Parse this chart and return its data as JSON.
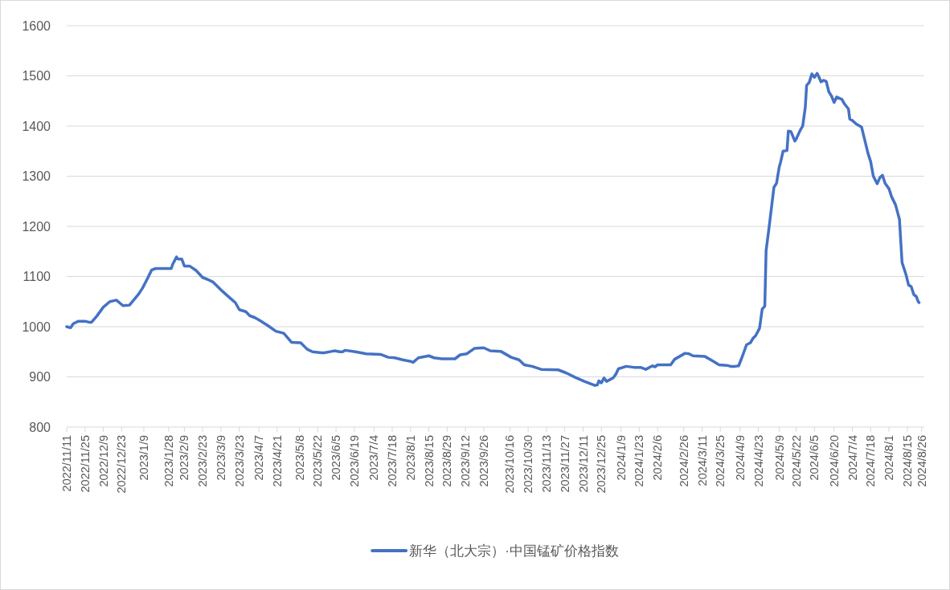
{
  "chart_data": {
    "type": "line",
    "x": [
      "2022-11-11",
      "2022-11-14",
      "2022-11-16",
      "2022-11-20",
      "2022-11-25",
      "2022-11-28",
      "2022-11-30",
      "2022-12-04",
      "2022-12-09",
      "2022-12-14",
      "2022-12-19",
      "2022-12-24",
      "2022-12-29",
      "2023-01-05",
      "2023-01-08",
      "2023-01-11",
      "2023-01-15",
      "2023-01-18",
      "2023-01-30",
      "2023-01-31",
      "2023-02-03",
      "2023-02-04",
      "2023-02-07",
      "2023-02-09",
      "2023-02-13",
      "2023-02-18",
      "2023-02-23",
      "2023-02-27",
      "2023-03-03",
      "2023-03-10",
      "2023-03-16",
      "2023-03-20",
      "2023-03-23",
      "2023-03-28",
      "2023-03-31",
      "2023-04-04",
      "2023-04-08",
      "2023-04-14",
      "2023-04-20",
      "2023-04-26",
      "2023-05-02",
      "2023-05-09",
      "2023-05-14",
      "2023-05-18",
      "2023-05-25",
      "2023-05-27",
      "2023-06-02",
      "2023-06-04",
      "2023-06-08",
      "2023-06-10",
      "2023-06-12",
      "2023-06-20",
      "2023-06-28",
      "2023-07-09",
      "2023-07-15",
      "2023-07-20",
      "2023-07-26",
      "2023-08-01",
      "2023-08-03",
      "2023-08-07",
      "2023-08-15",
      "2023-08-19",
      "2023-08-25",
      "2023-09-04",
      "2023-09-08",
      "2023-09-13",
      "2023-09-19",
      "2023-09-26",
      "2023-10-01",
      "2023-10-09",
      "2023-10-17",
      "2023-10-23",
      "2023-10-27",
      "2023-11-02",
      "2023-11-09",
      "2023-11-22",
      "2023-11-28",
      "2023-12-05",
      "2023-12-12",
      "2023-12-20",
      "2023-12-22",
      "2023-12-23",
      "2023-12-25",
      "2023-12-27",
      "2023-12-29",
      "2024-01-03",
      "2024-01-05",
      "2024-01-07",
      "2024-01-13",
      "2024-01-19",
      "2024-01-24",
      "2024-01-28",
      "2024-02-02",
      "2024-02-04",
      "2024-02-06",
      "2024-02-16",
      "2024-02-19",
      "2024-02-27",
      "2024-03-01",
      "2024-03-04",
      "2024-03-13",
      "2024-03-19",
      "2024-03-24",
      "2024-03-30",
      "2024-04-02",
      "2024-04-05",
      "2024-04-08",
      "2024-04-11",
      "2024-04-14",
      "2024-04-17",
      "2024-04-19",
      "2024-04-21",
      "2024-04-24",
      "2024-04-26",
      "2024-04-28",
      "2024-04-29",
      "2024-05-01",
      "2024-05-03",
      "2024-05-05",
      "2024-05-07",
      "2024-05-09",
      "2024-05-10",
      "2024-05-12",
      "2024-05-15",
      "2024-05-16",
      "2024-05-18",
      "2024-05-21",
      "2024-05-22",
      "2024-05-25",
      "2024-05-27",
      "2024-05-29",
      "2024-05-30",
      "2024-06-01",
      "2024-06-03",
      "2024-06-05",
      "2024-06-07",
      "2024-06-08",
      "2024-06-10",
      "2024-06-12",
      "2024-06-14",
      "2024-06-16",
      "2024-06-18",
      "2024-06-20",
      "2024-06-22",
      "2024-06-26",
      "2024-06-28",
      "2024-07-01",
      "2024-07-02",
      "2024-07-04",
      "2024-07-07",
      "2024-07-11",
      "2024-07-13",
      "2024-07-16",
      "2024-07-18",
      "2024-07-20",
      "2024-07-23",
      "2024-07-25",
      "2024-07-27",
      "2024-07-29",
      "2024-08-01",
      "2024-08-03",
      "2024-08-06",
      "2024-08-09",
      "2024-08-11",
      "2024-08-14",
      "2024-08-16",
      "2024-08-18",
      "2024-08-20",
      "2024-08-22",
      "2024-08-23",
      "2024-08-24"
    ],
    "series": [
      {
        "name": "新华（北大宗）·中国锰矿价格指数",
        "color": "#4472c4",
        "values": [
          1000,
          998,
          1006,
          1011,
          1011,
          1009,
          1009,
          1021,
          1039,
          1050,
          1053,
          1042,
          1043,
          1065,
          1077,
          1092,
          1113,
          1116,
          1116,
          1124,
          1139,
          1135,
          1135,
          1121,
          1121,
          1112,
          1098,
          1094,
          1089,
          1071,
          1057,
          1048,
          1034,
          1030,
          1022,
          1018,
          1012,
          1002,
          991,
          987,
          969,
          968,
          955,
          950,
          948,
          948,
          951,
          952,
          950,
          950,
          953,
          950,
          946,
          945,
          939,
          938,
          934,
          931,
          929,
          938,
          942,
          938,
          936,
          936,
          944,
          946,
          957,
          958,
          952,
          951,
          939,
          934,
          924,
          921,
          915,
          914,
          908,
          899,
          891,
          883,
          884,
          892,
          888,
          898,
          891,
          898,
          905,
          916,
          921,
          919,
          919,
          915,
          922,
          920,
          924,
          924,
          935,
          947,
          946,
          942,
          941,
          932,
          924,
          923,
          921,
          921,
          922,
          942,
          964,
          968,
          977,
          982,
          997,
          1035,
          1041,
          1152,
          1192,
          1235,
          1278,
          1286,
          1318,
          1327,
          1350,
          1351,
          1390,
          1389,
          1370,
          1374,
          1391,
          1400,
          1438,
          1481,
          1487,
          1504,
          1497,
          1505,
          1500,
          1488,
          1491,
          1489,
          1468,
          1460,
          1447,
          1458,
          1453,
          1444,
          1434,
          1414,
          1411,
          1404,
          1398,
          1377,
          1345,
          1329,
          1300,
          1285,
          1297,
          1302,
          1286,
          1275,
          1259,
          1243,
          1214,
          1128,
          1104,
          1083,
          1080,
          1064,
          1060,
          1052,
          1048
        ]
      }
    ],
    "xlim": [
      "2022-11-11",
      "2024-08-28"
    ],
    "xticks": [
      {
        "value": "2022-11-11",
        "label": "2022/11/11"
      },
      {
        "value": "2022-11-25",
        "label": "2022/11/25"
      },
      {
        "value": "2022-12-09",
        "label": "2022/12/9"
      },
      {
        "value": "2022-12-23",
        "label": "2022/12/23"
      },
      {
        "value": "2023-01-09",
        "label": "2023/1/9"
      },
      {
        "value": "2023-01-28",
        "label": "2023/1/28"
      },
      {
        "value": "2023-02-09",
        "label": "2023/2/9"
      },
      {
        "value": "2023-02-23",
        "label": "2023/2/23"
      },
      {
        "value": "2023-03-09",
        "label": "2023/3/9"
      },
      {
        "value": "2023-03-23",
        "label": "2023/3/23"
      },
      {
        "value": "2023-04-07",
        "label": "2023/4/7"
      },
      {
        "value": "2023-04-21",
        "label": "2023/4/21"
      },
      {
        "value": "2023-05-08",
        "label": "2023/5/8"
      },
      {
        "value": "2023-05-22",
        "label": "2023/5/22"
      },
      {
        "value": "2023-06-05",
        "label": "2023/6/5"
      },
      {
        "value": "2023-06-19",
        "label": "2023/6/19"
      },
      {
        "value": "2023-07-04",
        "label": "2023/7/4"
      },
      {
        "value": "2023-07-18",
        "label": "2023/7/18"
      },
      {
        "value": "2023-08-01",
        "label": "2023/8/1"
      },
      {
        "value": "2023-08-15",
        "label": "2023/8/15"
      },
      {
        "value": "2023-08-29",
        "label": "2023/8/29"
      },
      {
        "value": "2023-09-12",
        "label": "2023/9/12"
      },
      {
        "value": "2023-09-26",
        "label": "2023/9/26"
      },
      {
        "value": "2023-10-16",
        "label": "2023/10/16"
      },
      {
        "value": "2023-10-30",
        "label": "2023/10/30"
      },
      {
        "value": "2023-11-13",
        "label": "2023/11/13"
      },
      {
        "value": "2023-11-27",
        "label": "2023/11/27"
      },
      {
        "value": "2023-12-11",
        "label": "2023/12/11"
      },
      {
        "value": "2023-12-25",
        "label": "2023/12/25"
      },
      {
        "value": "2024-01-09",
        "label": "2024/1/9"
      },
      {
        "value": "2024-01-23",
        "label": "2024/1/23"
      },
      {
        "value": "2024-02-06",
        "label": "2024/2/6"
      },
      {
        "value": "2024-02-26",
        "label": "2024/2/26"
      },
      {
        "value": "2024-03-11",
        "label": "2024/3/11"
      },
      {
        "value": "2024-03-25",
        "label": "2024/3/25"
      },
      {
        "value": "2024-04-09",
        "label": "2024/4/9"
      },
      {
        "value": "2024-04-23",
        "label": "2024/4/23"
      },
      {
        "value": "2024-05-09",
        "label": "2024/5/9"
      },
      {
        "value": "2024-05-22",
        "label": "2024/5/22"
      },
      {
        "value": "2024-06-05",
        "label": "2024/6/5"
      },
      {
        "value": "2024-06-20",
        "label": "2024/6/20"
      },
      {
        "value": "2024-07-04",
        "label": "2024/7/4"
      },
      {
        "value": "2024-07-18",
        "label": "2024/7/18"
      },
      {
        "value": "2024-08-01",
        "label": "2024/8/1"
      },
      {
        "value": "2024-08-15",
        "label": "2024/8/15"
      },
      {
        "value": "2024-08-26",
        "label": "2024/8/26"
      }
    ],
    "ylim": [
      800,
      1600
    ],
    "yticks": [
      800,
      900,
      1000,
      1100,
      1200,
      1300,
      1400,
      1500,
      1600
    ],
    "grid": "y",
    "legend": "bottom",
    "marker": "none",
    "line_style": "solid"
  }
}
